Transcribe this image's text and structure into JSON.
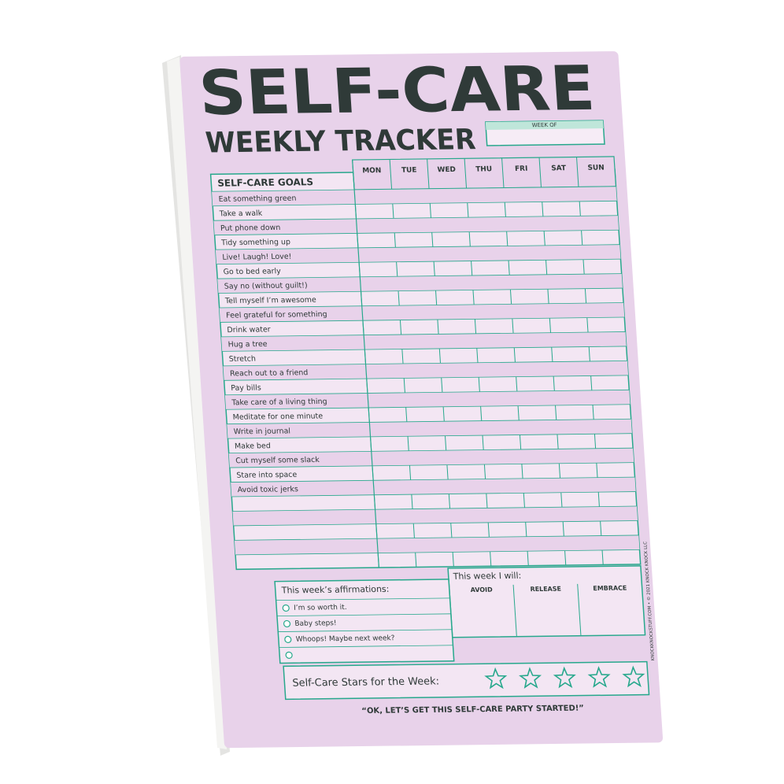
{
  "header": {
    "title": "SELF-CARE",
    "subtitle": "WEEKLY TRACKER",
    "week_of": "WEEK OF"
  },
  "table": {
    "goals_header": "SELF-CARE GOALS",
    "days": [
      "MON",
      "TUE",
      "WED",
      "THU",
      "FRI",
      "SAT",
      "SUN"
    ],
    "goals": [
      "Eat something green",
      "Take a walk",
      "Put phone down",
      "Tidy something up",
      "Live! Laugh! Love!",
      "Go to bed early",
      "Say no (without guilt!)",
      "Tell myself I’m awesome",
      "Feel grateful for something",
      "Drink water",
      "Hug a tree",
      "Stretch",
      "Reach out to a friend",
      "Pay bills",
      "Take care of a living thing",
      "Meditate for one minute",
      "Write in journal",
      "Make bed",
      "Cut myself some slack",
      "Stare into space",
      "Avoid toxic jerks"
    ]
  },
  "affirmations": {
    "title": "This week’s affirmations:",
    "items": [
      "I’m so worth it.",
      "Baby steps!",
      "Whoops! Maybe next week?"
    ]
  },
  "plan": {
    "title": "This week I will:",
    "columns": [
      "AVOID",
      "RELEASE",
      "EMBRACE"
    ]
  },
  "stars": {
    "label": "Self-Care Stars for the Week:"
  },
  "footer": {
    "quote": "“OK, LET’S GET THIS SELF-CARE PARTY STARTED!”",
    "credit": "KNOCKKNOCKSTUFF.COM • © 2021 KNOCK KNOCK LLC"
  }
}
